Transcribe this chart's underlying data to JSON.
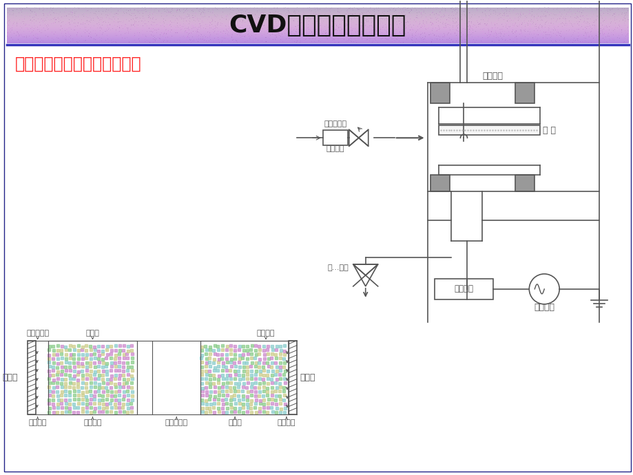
{
  "title": "CVD镀膜机自动化控制",
  "subtitle": "离子体增强化学气相沉积原理",
  "title_text_color": "#111111",
  "subtitle_color": "#ff2222",
  "bg_color": "#ffffff",
  "dc": "#555555",
  "gray_fill": "#999999",
  "labels": {
    "heating": "加热系统",
    "substrate": "衬 底",
    "gas_in": "进气系统",
    "mass_flow": "质量流量计",
    "match_network": "匹配网络",
    "excitation": "激励电源",
    "pump_sys": "抽...系统",
    "cathode_minus": "阴极－",
    "anode_plus": "阳极＋",
    "aston_dark": "阿斯顿暗区",
    "negative_glow": "负辉区",
    "anode_dark": "阳极暗区",
    "cathode_glow": "阴极辉光",
    "cathode_dark": "阴极暗区",
    "faraday_dark": "法拉第暗区",
    "positive_column": "正柱区",
    "anode_glow": "阳极辉光"
  }
}
